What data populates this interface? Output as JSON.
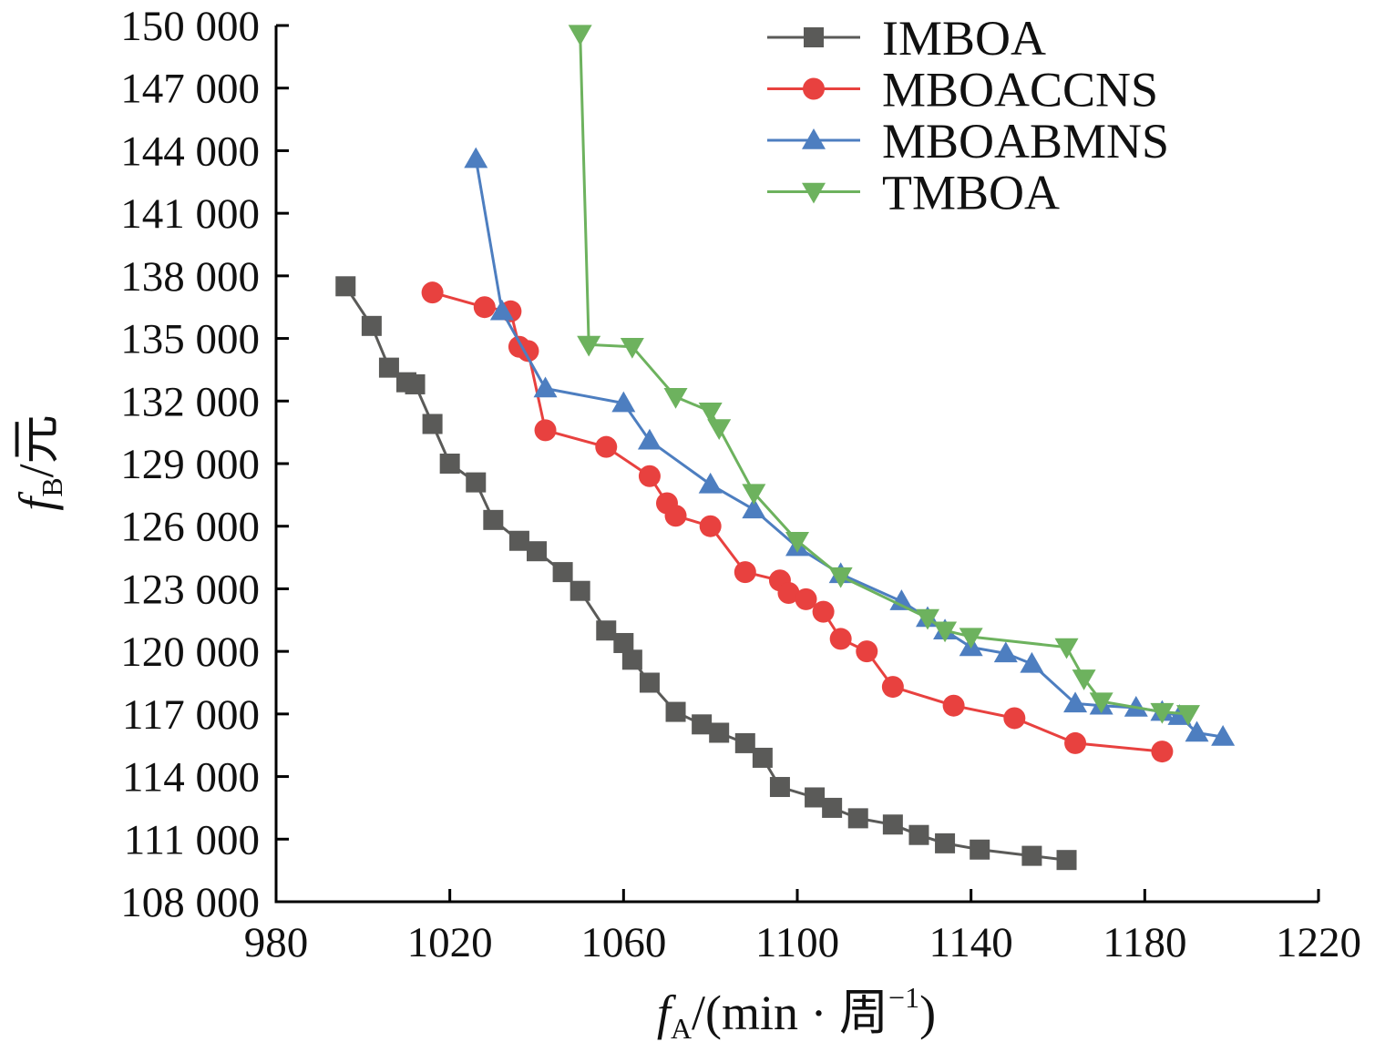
{
  "chart_data": {
    "type": "line",
    "title": "",
    "xlabel": {
      "main": "f",
      "sub": "A",
      "rest": "/(min · 周",
      "sup": "−1",
      "close": ")"
    },
    "ylabel": {
      "main": "f",
      "sub": "B",
      "rest": "/元"
    },
    "xlim": [
      980,
      1220
    ],
    "ylim": [
      108000,
      150000
    ],
    "xticks": [
      980,
      1020,
      1060,
      1100,
      1140,
      1180,
      1220
    ],
    "xtick_labels": [
      "980",
      "1020",
      "1060",
      "1100",
      "1140",
      "1180",
      "1220"
    ],
    "yticks": [
      108000,
      111000,
      114000,
      117000,
      120000,
      123000,
      126000,
      129000,
      132000,
      135000,
      138000,
      141000,
      144000,
      147000,
      150000
    ],
    "ytick_labels": [
      "108 000",
      "111 000",
      "114 000",
      "117 000",
      "120 000",
      "123 000",
      "126 000",
      "129 000",
      "132 000",
      "135 000",
      "138 000",
      "141 000",
      "144 000",
      "147 000",
      "150 000"
    ],
    "grid": false,
    "legend_position": "top-right",
    "series": [
      {
        "name": "IMBOA",
        "color": "#5a5a58",
        "marker": "square",
        "points": [
          [
            996,
            137500
          ],
          [
            1002,
            135600
          ],
          [
            1006,
            133600
          ],
          [
            1010,
            132900
          ],
          [
            1012,
            132800
          ],
          [
            1016,
            130900
          ],
          [
            1020,
            129000
          ],
          [
            1026,
            128100
          ],
          [
            1030,
            126300
          ],
          [
            1036,
            125300
          ],
          [
            1040,
            124800
          ],
          [
            1046,
            123800
          ],
          [
            1050,
            122900
          ],
          [
            1056,
            121000
          ],
          [
            1060,
            120400
          ],
          [
            1062,
            119600
          ],
          [
            1066,
            118500
          ],
          [
            1072,
            117100
          ],
          [
            1078,
            116500
          ],
          [
            1082,
            116100
          ],
          [
            1088,
            115600
          ],
          [
            1092,
            114900
          ],
          [
            1096,
            113500
          ],
          [
            1104,
            113000
          ],
          [
            1108,
            112500
          ],
          [
            1114,
            112000
          ],
          [
            1122,
            111700
          ],
          [
            1128,
            111200
          ],
          [
            1134,
            110800
          ],
          [
            1142,
            110500
          ],
          [
            1154,
            110200
          ],
          [
            1162,
            110000
          ]
        ]
      },
      {
        "name": "MBOACCNS",
        "color": "#e8413f",
        "marker": "circle",
        "points": [
          [
            1016,
            137200
          ],
          [
            1028,
            136500
          ],
          [
            1034,
            136300
          ],
          [
            1036,
            134600
          ],
          [
            1038,
            134400
          ],
          [
            1042,
            130600
          ],
          [
            1056,
            129800
          ],
          [
            1066,
            128400
          ],
          [
            1070,
            127100
          ],
          [
            1072,
            126500
          ],
          [
            1080,
            126000
          ],
          [
            1088,
            123800
          ],
          [
            1096,
            123400
          ],
          [
            1098,
            122800
          ],
          [
            1102,
            122500
          ],
          [
            1106,
            121900
          ],
          [
            1110,
            120600
          ],
          [
            1116,
            120000
          ],
          [
            1122,
            118300
          ],
          [
            1136,
            117400
          ],
          [
            1150,
            116800
          ],
          [
            1164,
            115600
          ],
          [
            1184,
            115200
          ]
        ]
      },
      {
        "name": "MBOABMNS",
        "color": "#4d7ec0",
        "marker": "triangle-up",
        "points": [
          [
            1026,
            143600
          ],
          [
            1032,
            136300
          ],
          [
            1042,
            132600
          ],
          [
            1060,
            131900
          ],
          [
            1066,
            130100
          ],
          [
            1080,
            128000
          ],
          [
            1090,
            126800
          ],
          [
            1100,
            125000
          ],
          [
            1110,
            123700
          ],
          [
            1124,
            122400
          ],
          [
            1130,
            121600
          ],
          [
            1134,
            121000
          ],
          [
            1140,
            120200
          ],
          [
            1148,
            119900
          ],
          [
            1154,
            119400
          ],
          [
            1164,
            117500
          ],
          [
            1170,
            117400
          ],
          [
            1178,
            117300
          ],
          [
            1184,
            117100
          ],
          [
            1188,
            116900
          ],
          [
            1192,
            116100
          ],
          [
            1198,
            115900
          ]
        ]
      },
      {
        "name": "TMBOA",
        "color": "#6db25e",
        "marker": "triangle-down",
        "points": [
          [
            1050,
            149600
          ],
          [
            1052,
            134700
          ],
          [
            1062,
            134600
          ],
          [
            1072,
            132200
          ],
          [
            1080,
            131500
          ],
          [
            1082,
            130700
          ],
          [
            1090,
            127600
          ],
          [
            1100,
            125300
          ],
          [
            1110,
            123600
          ],
          [
            1130,
            121600
          ],
          [
            1134,
            121000
          ],
          [
            1140,
            120700
          ],
          [
            1162,
            120200
          ],
          [
            1166,
            118700
          ],
          [
            1170,
            117600
          ],
          [
            1184,
            117100
          ],
          [
            1190,
            117000
          ]
        ]
      }
    ]
  }
}
